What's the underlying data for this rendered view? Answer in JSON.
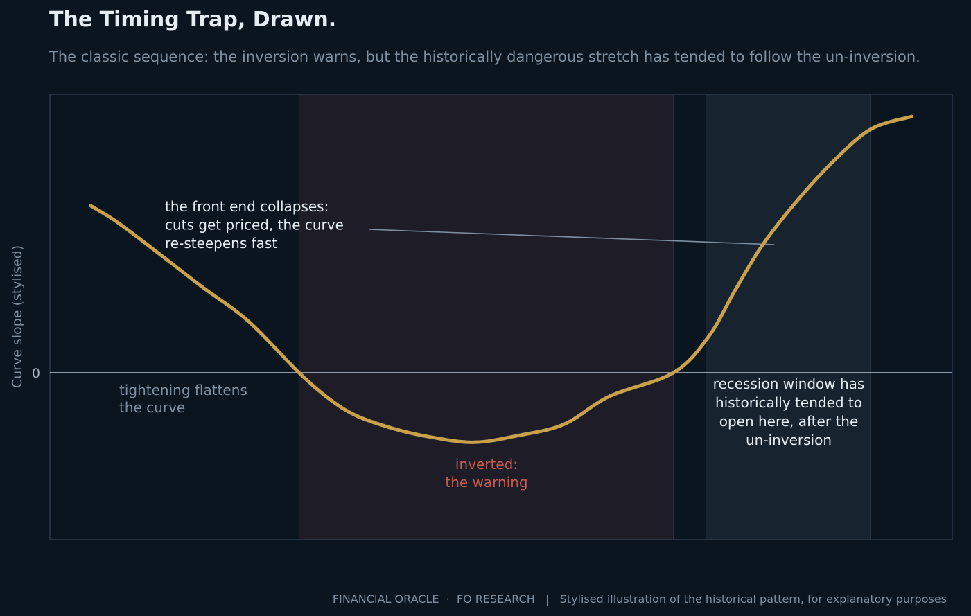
{
  "chart_data": {
    "type": "line",
    "title": "The Timing Trap, Drawn.",
    "subtitle": "The classic sequence: the inversion warns, but the historically dangerous stretch has tended to follow the un-inversion.",
    "ylabel": "Curve slope (stylised)",
    "xlabel": "",
    "xlim": [
      0,
      100
    ],
    "ylim": [
      -1.2,
      2.0
    ],
    "y_ticks": [
      {
        "value": 0,
        "label": "0"
      }
    ],
    "grid": false,
    "legend": "none",
    "series": [
      {
        "values": [
          {
            "x": 4.5,
            "y": 1.2
          },
          {
            "x": 7.5,
            "y": 1.08
          },
          {
            "x": 12,
            "y": 0.86
          },
          {
            "x": 17,
            "y": 0.61
          },
          {
            "x": 22,
            "y": 0.37
          },
          {
            "x": 27.6,
            "y": 0.0
          },
          {
            "x": 31,
            "y": -0.19
          },
          {
            "x": 34,
            "y": -0.31
          },
          {
            "x": 38,
            "y": -0.4
          },
          {
            "x": 42,
            "y": -0.46
          },
          {
            "x": 47,
            "y": -0.5
          },
          {
            "x": 52,
            "y": -0.45
          },
          {
            "x": 57,
            "y": -0.37
          },
          {
            "x": 62,
            "y": -0.17
          },
          {
            "x": 69.1,
            "y": 0.0
          },
          {
            "x": 73,
            "y": 0.26
          },
          {
            "x": 76,
            "y": 0.6
          },
          {
            "x": 79,
            "y": 0.92
          },
          {
            "x": 83,
            "y": 1.25
          },
          {
            "x": 87,
            "y": 1.53
          },
          {
            "x": 91,
            "y": 1.75
          },
          {
            "x": 95.5,
            "y": 1.84
          }
        ],
        "color": "#c9a14a"
      }
    ],
    "bands": [
      {
        "x0": 27.6,
        "x1": 69.1,
        "color": "#1e1d27",
        "label": "inverted:\nthe warning",
        "label_color": "#c75b4a"
      },
      {
        "x0": 72.7,
        "x1": 90.9,
        "color": "#182330",
        "label": "recession window has\nhistorically tended to\nopen here, after the\nun-inversion",
        "label_color": "#e6edf3"
      }
    ],
    "annotations": [
      {
        "text": "the front end collapses:\ncuts get priced, the curve\nre-steepens fast",
        "x": 12.8,
        "y": 1.17,
        "arrow_to": {
          "x": 80.3,
          "y": 0.92
        },
        "color": "#e6edf3",
        "anchor": "start"
      },
      {
        "text": "tightening flattens\nthe curve",
        "x": 7.8,
        "y": -0.11,
        "color": "#7d8fa0",
        "anchor": "start"
      }
    ],
    "colors": {
      "background": "#0b1520",
      "line": "#c9a14a",
      "zero_line": "#9fb0bf",
      "frame": "#2a3a4a",
      "connector": "#7d8fa0"
    }
  },
  "footer": "FINANCIAL ORACLE  ·  FO RESEARCH   |   Stylised illustration of the historical pattern, for explanatory purposes"
}
